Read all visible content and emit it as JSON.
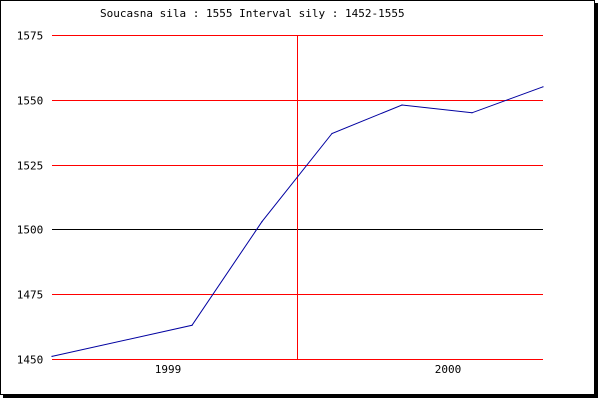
{
  "header": {
    "text": "Soucasna sila : 1555  Interval sily : 1452-1555"
  },
  "chart_data": {
    "type": "line",
    "title": "Soucasna sila : 1555  Interval sily : 1452-1555",
    "xlabel": "",
    "ylabel": "",
    "ylim": [
      1450,
      1575
    ],
    "y_ticks": [
      1450,
      1475,
      1500,
      1525,
      1550,
      1575
    ],
    "x_ticks": [
      "1999",
      "2000"
    ],
    "grid": true,
    "series": [
      {
        "values": [
          1451,
          1463,
          1503,
          1537,
          1548,
          1545,
          1555
        ]
      }
    ]
  },
  "colors": {
    "grid": "#ff0000",
    "midline": "#000000",
    "series": "#0000a0",
    "background": "#ffffff",
    "frame": "#000000",
    "shadow": "#000000"
  }
}
